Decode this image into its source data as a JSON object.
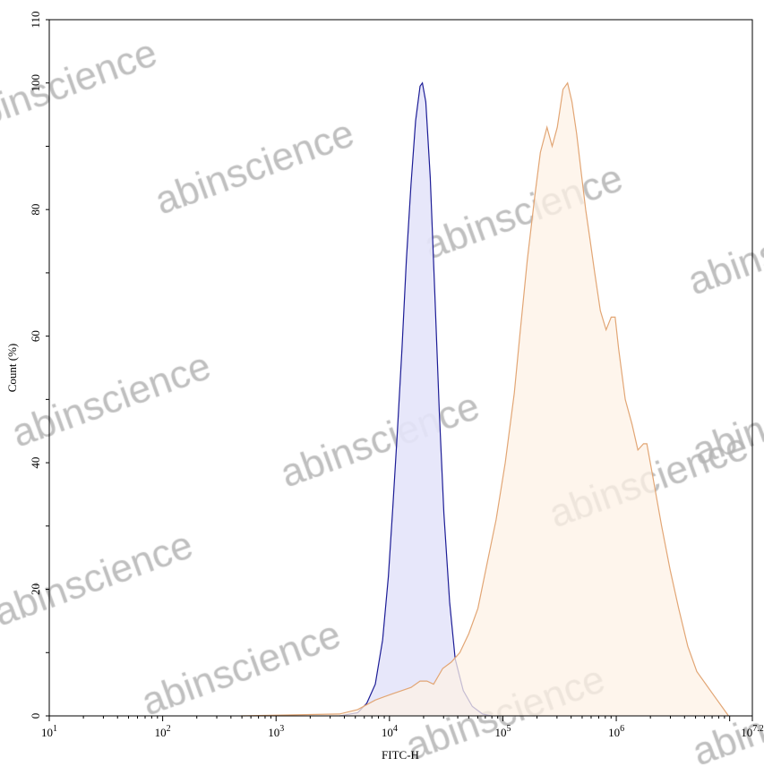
{
  "chart_data": {
    "type": "area",
    "title": "",
    "xlabel": "FITC-H",
    "ylabel": "Count (%)",
    "x_scale": "log",
    "xlim": [
      10,
      15848932
    ],
    "ylim": [
      0,
      110
    ],
    "grid": false,
    "legend": "none",
    "x_ticks": [
      {
        "value": 10,
        "base": "10",
        "exp": "1"
      },
      {
        "value": 100,
        "base": "10",
        "exp": "2"
      },
      {
        "value": 1000,
        "base": "10",
        "exp": "3"
      },
      {
        "value": 10000,
        "base": "10",
        "exp": "4"
      },
      {
        "value": 100000,
        "base": "10",
        "exp": "5"
      },
      {
        "value": 1000000,
        "base": "10",
        "exp": "6"
      },
      {
        "value": 15848932,
        "base": "10",
        "exp": "7.2"
      }
    ],
    "y_ticks": [
      {
        "value": 0,
        "label": "0"
      },
      {
        "value": 20,
        "label": "20"
      },
      {
        "value": 40,
        "label": "40"
      },
      {
        "value": 60,
        "label": "60"
      },
      {
        "value": 80,
        "label": "80"
      },
      {
        "value": 100,
        "label": "100"
      },
      {
        "value": 110,
        "label": "110"
      }
    ],
    "series": [
      {
        "color": "#1c1c96",
        "fill": "#e4e4fa",
        "x": [
          3630,
          5250,
          6310,
          7500,
          8710,
          9770,
          10700,
          11750,
          12900,
          14100,
          15500,
          17000,
          18600,
          19500,
          20900,
          22900,
          25100,
          27500,
          30200,
          33900,
          38000,
          44700,
          53700,
          66100,
          79400
        ],
        "y": [
          0,
          0.5,
          2,
          5,
          12,
          22,
          33,
          45,
          58,
          72,
          84,
          94,
          99.5,
          100,
          97,
          85,
          67,
          48,
          32,
          18,
          9,
          4,
          1.5,
          0.3,
          0
        ]
      },
      {
        "color": "#e2a675",
        "fill": "#fdf2e6",
        "x": [
          490,
          3630,
          5250,
          7500,
          8900,
          10700,
          12900,
          15500,
          18600,
          21400,
          24500,
          29500,
          35100,
          41700,
          50100,
          60300,
          72400,
          87100,
          105000,
          126000,
          141000,
          164000,
          191000,
          214000,
          245000,
          272000,
          302000,
          339000,
          372000,
          407000,
          447000,
          490000,
          537000,
          589000,
          646000,
          724000,
          813000,
          902000,
          977000,
          1050000,
          1200000,
          1380000,
          1550000,
          1740000,
          1860000,
          2090000,
          2510000,
          2990000,
          3550000,
          4270000,
          5130000,
          6170000,
          7410000,
          8510000,
          9770000
        ],
        "y": [
          0,
          0.3,
          1,
          2.5,
          3,
          3.5,
          4,
          4.5,
          5.5,
          5.5,
          5,
          7.5,
          8.5,
          10,
          13,
          17,
          24,
          31,
          40,
          51,
          60,
          72,
          82,
          89,
          93,
          90,
          93,
          99,
          100,
          97,
          92,
          86,
          80,
          75,
          70,
          64,
          61,
          63,
          63,
          58,
          50,
          46,
          42,
          43,
          43,
          38,
          30,
          23,
          17,
          11,
          7,
          5,
          3,
          1.5,
          0
        ]
      }
    ]
  },
  "watermark": {
    "text": "abinscience",
    "color": "#b4b4b4"
  }
}
